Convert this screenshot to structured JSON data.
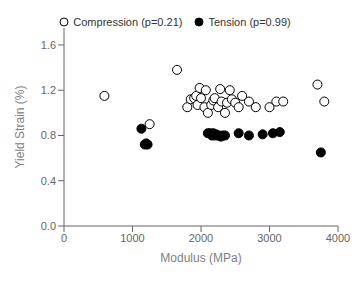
{
  "chart_data": {
    "type": "scatter",
    "xlabel": "Modulus (MPa)",
    "ylabel": "Yield Strain (%)",
    "xlim": [
      0,
      4000
    ],
    "ylim": [
      0,
      1.75
    ],
    "xticks": [
      0,
      1000,
      2000,
      3000,
      4000
    ],
    "yticks": [
      {
        "value": 0,
        "label": "0.0"
      },
      0.4,
      0.8,
      1.2,
      1.6
    ],
    "grid": false,
    "legend": "top",
    "series": [
      {
        "name": "Compression (p=0.21)",
        "color": "black",
        "marker": "open_circle",
        "x": [
          590,
          1250,
          1650,
          1800,
          1850,
          1900,
          1930,
          1950,
          1980,
          2000,
          2050,
          2070,
          2100,
          2150,
          2180,
          2200,
          2250,
          2280,
          2300,
          2350,
          2380,
          2420,
          2450,
          2500,
          2550,
          2600,
          2700,
          2800,
          3000,
          3100,
          3200,
          3700,
          3800
        ],
        "values": [
          1.15,
          0.9,
          1.38,
          1.05,
          1.12,
          1.13,
          1.15,
          1.07,
          1.22,
          1.13,
          1.05,
          1.2,
          1.0,
          1.07,
          1.11,
          1.13,
          1.05,
          1.21,
          1.1,
          1.0,
          1.09,
          1.2,
          1.12,
          1.09,
          1.05,
          1.15,
          1.1,
          1.05,
          1.05,
          1.1,
          1.1,
          1.25,
          1.1
        ]
      },
      {
        "name": "Tension (p=0.99)",
        "color": "black",
        "marker": "circle",
        "x": [
          1130,
          1180,
          1200,
          1220,
          2100,
          2130,
          2160,
          2180,
          2200,
          2220,
          2240,
          2260,
          2290,
          2320,
          2350,
          2550,
          2700,
          2900,
          3050,
          3150,
          3750
        ],
        "values": [
          0.86,
          0.72,
          0.73,
          0.72,
          0.82,
          0.82,
          0.8,
          0.82,
          0.8,
          0.81,
          0.8,
          0.8,
          0.79,
          0.8,
          0.8,
          0.82,
          0.8,
          0.81,
          0.82,
          0.83,
          0.65
        ]
      }
    ]
  }
}
